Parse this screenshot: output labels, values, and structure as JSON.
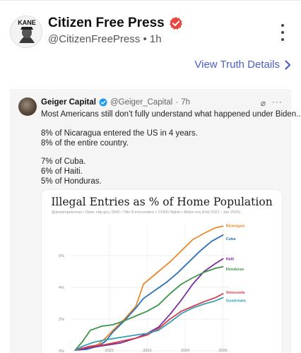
{
  "post": {
    "author_name": "Citizen Free Press",
    "handle": "@CitizenFreePress",
    "separator": "•",
    "time": "1h",
    "avatar_text": "KANE",
    "view_details": "View Truth Details"
  },
  "tweet": {
    "name": "Geiger Capital",
    "handle": "@Geiger_Capital",
    "separator": "·",
    "time": "7h",
    "lines": [
      "Most Americans still don’t fully understand what happened under Biden...",
      "8% of Nicaragua entered the US in 4 years.",
      "8% of the entire country.",
      "7% of Cuba.",
      "6% of Haiti.",
      "5% of Honduras."
    ]
  },
  "colors": {
    "accent_link": "#4a5fc1",
    "verified_badge": "#e8473f",
    "tweet_badge": "#1d9bf0"
  },
  "chart_data": {
    "type": "line",
    "title": "Illegal Entries as % of Home Population",
    "subtitle": "@jmalenpeterson  •  Data: cbp.gov, DHS  •  Title 8 encounters + CHNV flights  •  Biden era (Feb 2021 - Jan 2025)",
    "xlabel": "",
    "ylabel": "",
    "x_ticks": [
      "2022",
      "2023",
      "2024",
      "2025"
    ],
    "y_ticks": [
      "0%",
      "2%",
      "4%",
      "6%"
    ],
    "xlim": [
      2021.0,
      2025.1
    ],
    "ylim": [
      0,
      8
    ],
    "grid": true,
    "series": [
      {
        "name": "Nicaragua",
        "color": "#e8892a",
        "points": [
          [
            2021.1,
            0.05
          ],
          [
            2021.4,
            0.15
          ],
          [
            2021.7,
            0.4
          ],
          [
            2021.9,
            0.8
          ],
          [
            2022.1,
            1.3
          ],
          [
            2022.4,
            2.0
          ],
          [
            2022.7,
            2.8
          ],
          [
            2022.9,
            4.2
          ],
          [
            2023.1,
            4.6
          ],
          [
            2023.3,
            5.0
          ],
          [
            2023.6,
            5.6
          ],
          [
            2023.9,
            6.3
          ],
          [
            2024.2,
            7.0
          ],
          [
            2024.5,
            7.4
          ],
          [
            2024.8,
            7.75
          ],
          [
            2025.0,
            7.85
          ]
        ]
      },
      {
        "name": "Cuba",
        "color": "#2a6fb8",
        "points": [
          [
            2021.1,
            0.05
          ],
          [
            2021.4,
            0.1
          ],
          [
            2021.7,
            0.3
          ],
          [
            2021.9,
            0.6
          ],
          [
            2022.1,
            1.2
          ],
          [
            2022.4,
            1.9
          ],
          [
            2022.7,
            2.7
          ],
          [
            2022.9,
            3.3
          ],
          [
            2023.2,
            3.8
          ],
          [
            2023.5,
            4.3
          ],
          [
            2023.8,
            4.9
          ],
          [
            2024.1,
            5.6
          ],
          [
            2024.4,
            6.3
          ],
          [
            2024.7,
            6.9
          ],
          [
            2025.0,
            7.3
          ]
        ]
      },
      {
        "name": "Haiti",
        "color": "#7b2f9e",
        "points": [
          [
            2021.1,
            0.05
          ],
          [
            2021.5,
            0.2
          ],
          [
            2021.9,
            0.35
          ],
          [
            2022.3,
            0.5
          ],
          [
            2022.7,
            0.8
          ],
          [
            2023.0,
            1.1
          ],
          [
            2023.3,
            1.5
          ],
          [
            2023.6,
            2.3
          ],
          [
            2023.9,
            3.2
          ],
          [
            2024.2,
            4.2
          ],
          [
            2024.5,
            5.0
          ],
          [
            2024.8,
            5.5
          ],
          [
            2025.0,
            5.8
          ]
        ]
      },
      {
        "name": "Honduras",
        "color": "#3e9648",
        "points": [
          [
            2021.1,
            0.05
          ],
          [
            2021.3,
            0.6
          ],
          [
            2021.5,
            1.3
          ],
          [
            2021.8,
            1.55
          ],
          [
            2022.1,
            1.65
          ],
          [
            2022.4,
            1.9
          ],
          [
            2022.7,
            2.2
          ],
          [
            2023.0,
            2.5
          ],
          [
            2023.3,
            2.9
          ],
          [
            2023.6,
            3.6
          ],
          [
            2023.9,
            4.2
          ],
          [
            2024.2,
            4.6
          ],
          [
            2024.5,
            4.95
          ],
          [
            2024.8,
            5.2
          ],
          [
            2025.0,
            5.3
          ]
        ]
      },
      {
        "name": "Venezuela",
        "color": "#d63d4f",
        "points": [
          [
            2021.1,
            0.05
          ],
          [
            2021.5,
            0.3
          ],
          [
            2021.9,
            0.4
          ],
          [
            2022.3,
            0.6
          ],
          [
            2022.7,
            0.8
          ],
          [
            2023.0,
            1.0
          ],
          [
            2023.3,
            1.4
          ],
          [
            2023.6,
            2.0
          ],
          [
            2023.9,
            2.5
          ],
          [
            2024.2,
            2.8
          ],
          [
            2024.5,
            3.1
          ],
          [
            2024.8,
            3.35
          ],
          [
            2025.0,
            3.6
          ]
        ]
      },
      {
        "name": "Guatemala",
        "color": "#34a0b5",
        "points": [
          [
            2021.1,
            0.05
          ],
          [
            2021.3,
            0.3
          ],
          [
            2021.6,
            0.55
          ],
          [
            2021.9,
            0.7
          ],
          [
            2022.3,
            0.85
          ],
          [
            2022.7,
            1.0
          ],
          [
            2023.0,
            1.1
          ],
          [
            2023.3,
            1.3
          ],
          [
            2023.6,
            1.8
          ],
          [
            2023.9,
            2.35
          ],
          [
            2024.2,
            2.7
          ],
          [
            2024.5,
            2.95
          ],
          [
            2024.8,
            3.15
          ],
          [
            2025.0,
            3.35
          ]
        ]
      }
    ]
  }
}
